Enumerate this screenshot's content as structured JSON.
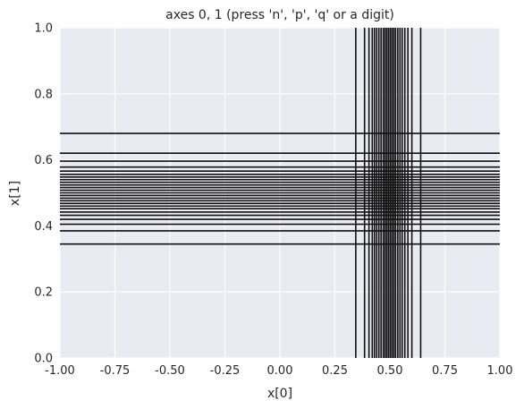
{
  "chart_data": {
    "type": "line",
    "title": "axes 0, 1   (press 'n', 'p', 'q' or a digit)",
    "xlabel": "x[0]",
    "ylabel": "x[1]",
    "xlim": [
      -1.0,
      1.0
    ],
    "ylim": [
      0.0,
      1.0
    ],
    "xticks": [
      "-1.00",
      "-0.75",
      "-0.50",
      "-0.25",
      "0.00",
      "0.25",
      "0.50",
      "0.75",
      "1.00"
    ],
    "yticks": [
      "0.0",
      "0.2",
      "0.4",
      "0.6",
      "0.8",
      "1.0"
    ],
    "grid": true,
    "background": "#eaeaf2",
    "line_color": "#111111",
    "series": [
      {
        "orientation": "vertical",
        "x": [
          0.345,
          0.385,
          0.405,
          0.42,
          0.43,
          0.44,
          0.45,
          0.46,
          0.47,
          0.478,
          0.486,
          0.494,
          0.502,
          0.51,
          0.518,
          0.526,
          0.536,
          0.546,
          0.556,
          0.568,
          0.582,
          0.6,
          0.64
        ]
      },
      {
        "orientation": "horizontal",
        "y": [
          0.345,
          0.385,
          0.405,
          0.42,
          0.432,
          0.442,
          0.452,
          0.46,
          0.468,
          0.476,
          0.484,
          0.492,
          0.5,
          0.508,
          0.516,
          0.524,
          0.532,
          0.54,
          0.548,
          0.556,
          0.566,
          0.578,
          0.596,
          0.62,
          0.68
        ]
      }
    ]
  }
}
